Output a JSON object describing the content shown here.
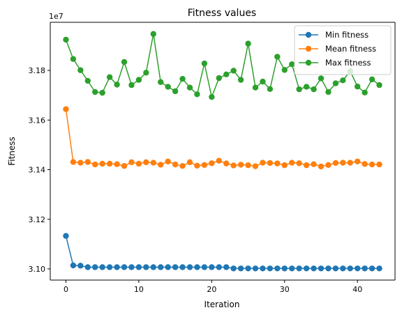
{
  "chart_data": {
    "type": "line",
    "title": "Fitness values",
    "xlabel": "Iteration",
    "ylabel": "Fitness",
    "offset_label": "1e7",
    "x": [
      0,
      1,
      2,
      3,
      4,
      5,
      6,
      7,
      8,
      9,
      10,
      11,
      12,
      13,
      14,
      15,
      16,
      17,
      18,
      19,
      20,
      21,
      22,
      23,
      24,
      25,
      26,
      27,
      28,
      29,
      30,
      31,
      32,
      33,
      34,
      35,
      36,
      37,
      38,
      39,
      40,
      41,
      42,
      43
    ],
    "xlim": [
      -2.15,
      45.15
    ],
    "ylim": [
      3.0955,
      3.1994
    ],
    "x_ticks": [
      0,
      10,
      20,
      30,
      40
    ],
    "y_ticks": [
      3.1,
      3.12,
      3.14,
      3.16,
      3.18
    ],
    "y_tick_labels": [
      "3.10",
      "3.12",
      "3.14",
      "3.16",
      "3.18"
    ],
    "grid": false,
    "legend_position": "top-right",
    "series": [
      {
        "name": "Min fitness",
        "color": "#1f77b4",
        "values": [
          3.1133,
          3.1014,
          3.1013,
          3.1007,
          3.1007,
          3.1007,
          3.1007,
          3.1007,
          3.1007,
          3.1007,
          3.1007,
          3.1007,
          3.1007,
          3.1007,
          3.1007,
          3.1007,
          3.1007,
          3.1007,
          3.1007,
          3.1007,
          3.1007,
          3.1007,
          3.1007,
          3.1002,
          3.1002,
          3.1002,
          3.1002,
          3.1002,
          3.1002,
          3.1002,
          3.1002,
          3.1002,
          3.1002,
          3.1002,
          3.1002,
          3.1002,
          3.1002,
          3.1002,
          3.1002,
          3.1002,
          3.1002,
          3.1002,
          3.1002,
          3.1002
        ]
      },
      {
        "name": "Mean fitness",
        "color": "#ff7f0e",
        "values": [
          3.1644,
          3.1431,
          3.1428,
          3.1431,
          3.1421,
          3.1424,
          3.1424,
          3.1422,
          3.1415,
          3.143,
          3.1424,
          3.143,
          3.1428,
          3.142,
          3.1433,
          3.1421,
          3.1415,
          3.143,
          3.1416,
          3.1419,
          3.1426,
          3.1436,
          3.1425,
          3.1417,
          3.142,
          3.1418,
          3.1414,
          3.1428,
          3.1427,
          3.1425,
          3.1418,
          3.1428,
          3.1426,
          3.1418,
          3.1422,
          3.1413,
          3.1419,
          3.1427,
          3.1428,
          3.1428,
          3.1433,
          3.1423,
          3.1421,
          3.1421
        ]
      },
      {
        "name": "Max fitness",
        "color": "#2ca02c",
        "values": [
          3.1924,
          3.1846,
          3.1801,
          3.1758,
          3.1713,
          3.171,
          3.1773,
          3.1743,
          3.1834,
          3.1741,
          3.1762,
          3.1791,
          3.1947,
          3.1753,
          3.1734,
          3.1716,
          3.1766,
          3.1731,
          3.1704,
          3.1828,
          3.1693,
          3.1769,
          3.1784,
          3.1799,
          3.1762,
          3.1908,
          3.1731,
          3.1755,
          3.1725,
          3.1855,
          3.1802,
          3.1825,
          3.1724,
          3.1734,
          3.1724,
          3.1768,
          3.1713,
          3.1748,
          3.176,
          3.1797,
          3.1735,
          3.1711,
          3.1764,
          3.1741
        ]
      }
    ]
  }
}
